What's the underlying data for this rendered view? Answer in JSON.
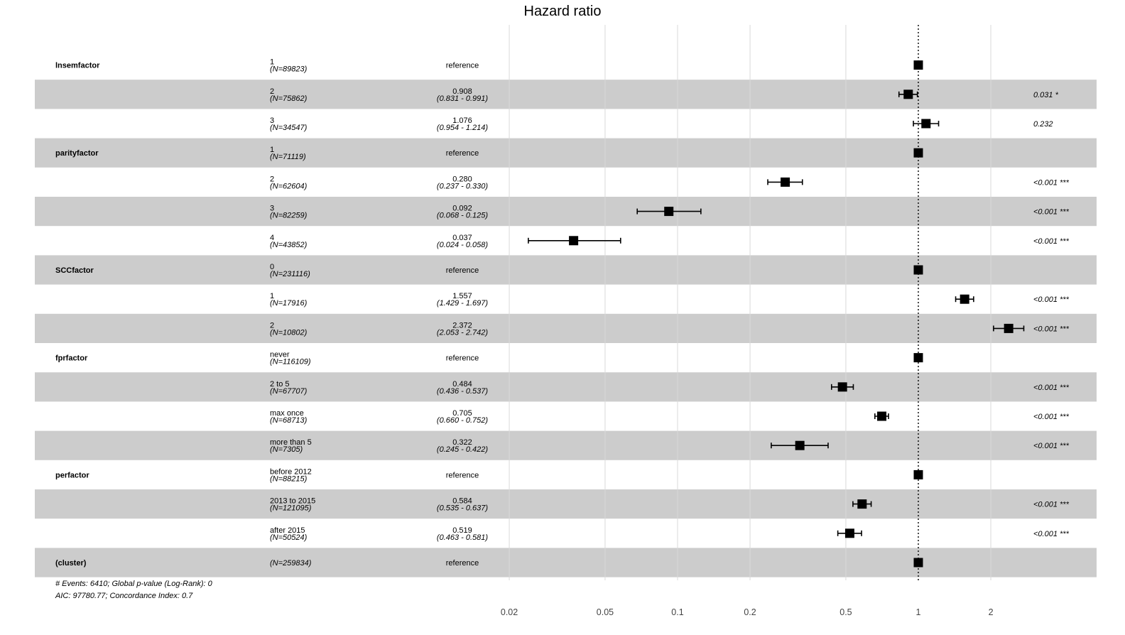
{
  "chart_data": {
    "type": "forest",
    "title": "Hazard ratio",
    "x_scale": "log",
    "x_ticks": [
      0.02,
      0.05,
      0.1,
      0.2,
      0.5,
      1,
      2
    ],
    "x_tick_labels": [
      "0.02",
      "0.05",
      "0.1",
      "0.2",
      "0.5",
      "1",
      "2"
    ],
    "reference_line": 1,
    "rows": [
      {
        "variable": "lnsemfactor",
        "level": "1",
        "n": "(N=89823)",
        "estimate_text": "reference",
        "ci_text": "",
        "p_text": "",
        "hr": 1,
        "lo": null,
        "hi": null,
        "shaded": false
      },
      {
        "variable": "",
        "level": "2",
        "n": "(N=75862)",
        "estimate_text": "0.908",
        "ci_text": "(0.831 - 0.991)",
        "p_text": "0.031 *",
        "hr": 0.908,
        "lo": 0.831,
        "hi": 0.991,
        "shaded": true
      },
      {
        "variable": "",
        "level": "3",
        "n": "(N=34547)",
        "estimate_text": "1.076",
        "ci_text": "(0.954 - 1.214)",
        "p_text": "0.232",
        "hr": 1.076,
        "lo": 0.954,
        "hi": 1.214,
        "shaded": false
      },
      {
        "variable": "parityfactor",
        "level": "1",
        "n": "(N=71119)",
        "estimate_text": "reference",
        "ci_text": "",
        "p_text": "",
        "hr": 1,
        "lo": null,
        "hi": null,
        "shaded": true
      },
      {
        "variable": "",
        "level": "2",
        "n": "(N=62604)",
        "estimate_text": "0.280",
        "ci_text": "(0.237 - 0.330)",
        "p_text": "<0.001 ***",
        "hr": 0.28,
        "lo": 0.237,
        "hi": 0.33,
        "shaded": false
      },
      {
        "variable": "",
        "level": "3",
        "n": "(N=82259)",
        "estimate_text": "0.092",
        "ci_text": "(0.068 - 0.125)",
        "p_text": "<0.001 ***",
        "hr": 0.092,
        "lo": 0.068,
        "hi": 0.125,
        "shaded": true
      },
      {
        "variable": "",
        "level": "4",
        "n": "(N=43852)",
        "estimate_text": "0.037",
        "ci_text": "(0.024 - 0.058)",
        "p_text": "<0.001 ***",
        "hr": 0.037,
        "lo": 0.024,
        "hi": 0.058,
        "shaded": false
      },
      {
        "variable": "SCCfactor",
        "level": "0",
        "n": "(N=231116)",
        "estimate_text": "reference",
        "ci_text": "",
        "p_text": "",
        "hr": 1,
        "lo": null,
        "hi": null,
        "shaded": true
      },
      {
        "variable": "",
        "level": "1",
        "n": "(N=17916)",
        "estimate_text": "1.557",
        "ci_text": "(1.429 - 1.697)",
        "p_text": "<0.001 ***",
        "hr": 1.557,
        "lo": 1.429,
        "hi": 1.697,
        "shaded": false
      },
      {
        "variable": "",
        "level": "2",
        "n": "(N=10802)",
        "estimate_text": "2.372",
        "ci_text": "(2.053 - 2.742)",
        "p_text": "<0.001 ***",
        "hr": 2.372,
        "lo": 2.053,
        "hi": 2.742,
        "shaded": true
      },
      {
        "variable": "fprfactor",
        "level": "never",
        "n": "(N=116109)",
        "estimate_text": "reference",
        "ci_text": "",
        "p_text": "",
        "hr": 1,
        "lo": null,
        "hi": null,
        "shaded": false
      },
      {
        "variable": "",
        "level": "2 to 5",
        "n": "(N=67707)",
        "estimate_text": "0.484",
        "ci_text": "(0.436 - 0.537)",
        "p_text": "<0.001 ***",
        "hr": 0.484,
        "lo": 0.436,
        "hi": 0.537,
        "shaded": true
      },
      {
        "variable": "",
        "level": "max once",
        "n": "(N=68713)",
        "estimate_text": "0.705",
        "ci_text": "(0.660 - 0.752)",
        "p_text": "<0.001 ***",
        "hr": 0.705,
        "lo": 0.66,
        "hi": 0.752,
        "shaded": false
      },
      {
        "variable": "",
        "level": "more than 5",
        "n": "(N=7305)",
        "estimate_text": "0.322",
        "ci_text": "(0.245 - 0.422)",
        "p_text": "<0.001 ***",
        "hr": 0.322,
        "lo": 0.245,
        "hi": 0.422,
        "shaded": true
      },
      {
        "variable": "perfactor",
        "level": "before 2012",
        "n": "(N=88215)",
        "estimate_text": "reference",
        "ci_text": "",
        "p_text": "",
        "hr": 1,
        "lo": null,
        "hi": null,
        "shaded": false
      },
      {
        "variable": "",
        "level": "2013 to 2015",
        "n": "(N=121095)",
        "estimate_text": "0.584",
        "ci_text": "(0.535 - 0.637)",
        "p_text": "<0.001 ***",
        "hr": 0.584,
        "lo": 0.535,
        "hi": 0.637,
        "shaded": true
      },
      {
        "variable": "",
        "level": "after 2015",
        "n": "(N=50524)",
        "estimate_text": "0.519",
        "ci_text": "(0.463 - 0.581)",
        "p_text": "<0.001 ***",
        "hr": 0.519,
        "lo": 0.463,
        "hi": 0.581,
        "shaded": false
      },
      {
        "variable": "(cluster)",
        "level": "",
        "n": "(N=259834)",
        "estimate_text": "reference",
        "ci_text": "",
        "p_text": "",
        "hr": 1,
        "lo": null,
        "hi": null,
        "shaded": true
      }
    ],
    "footnotes": [
      "# Events: 6410; Global p-value (Log-Rank): 0",
      "AIC: 97780.77; Concordance Index: 0.7"
    ],
    "colors": {
      "shade": "#cccccc",
      "grid": "#d9d9d9",
      "marker": "#000000"
    }
  }
}
